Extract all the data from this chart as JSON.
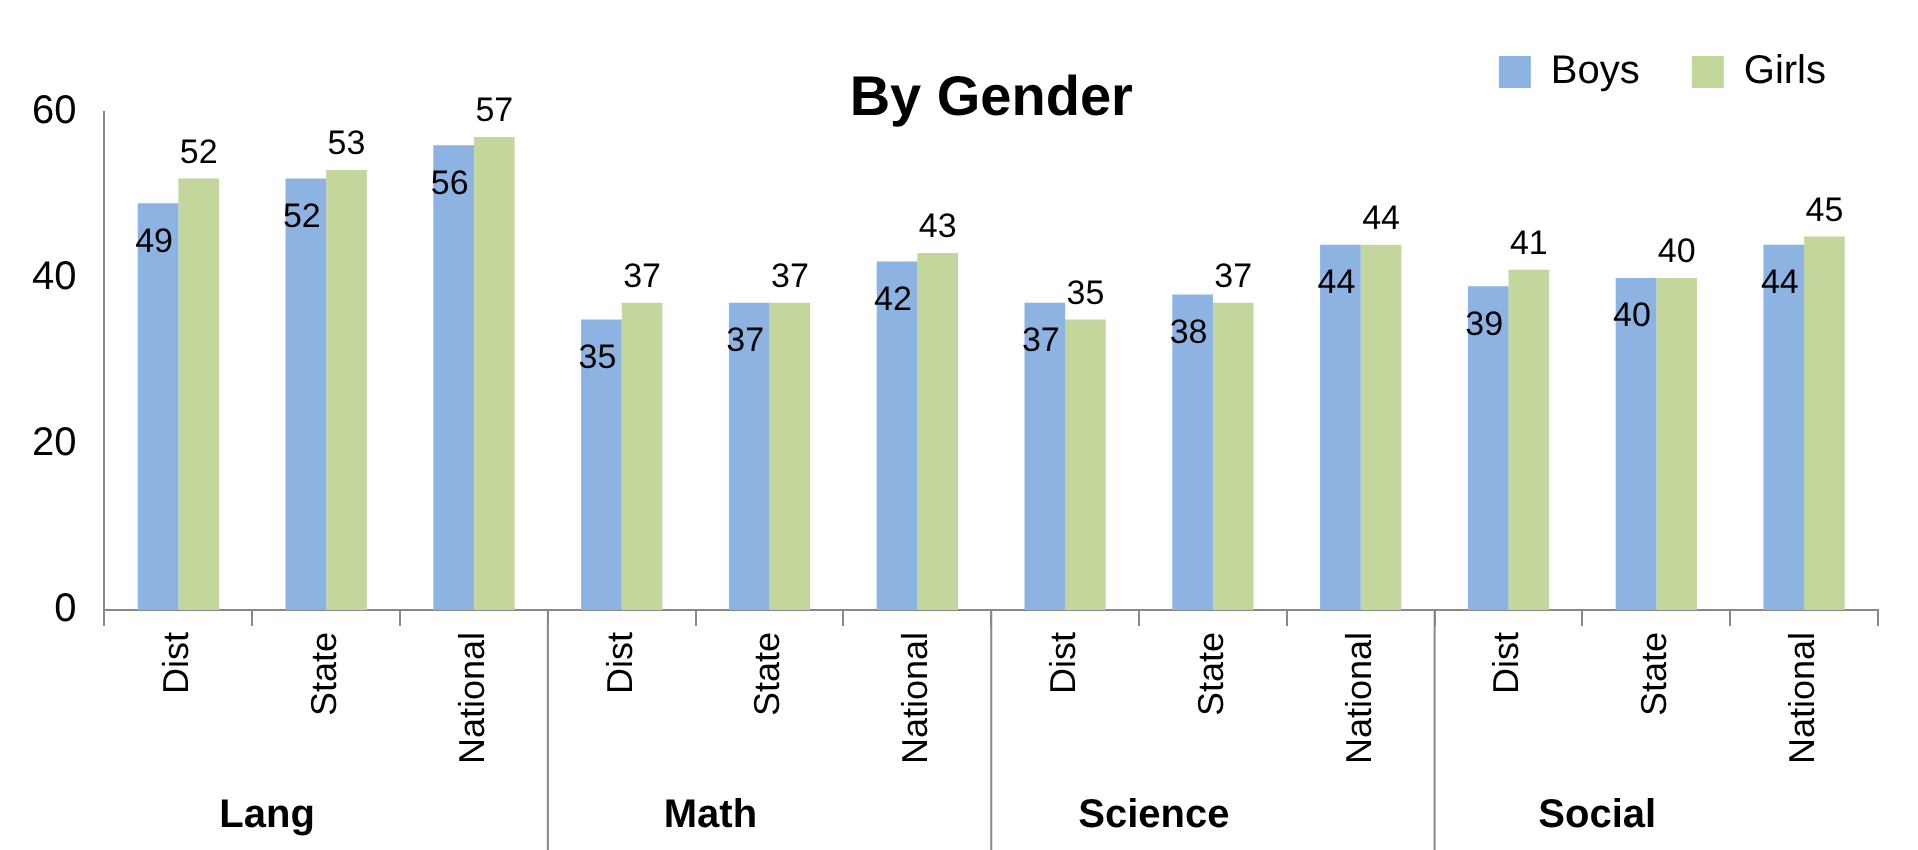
{
  "chart_data": {
    "type": "bar",
    "title": "By Gender",
    "categories": [
      "Dist",
      "State",
      "National",
      "Dist",
      "State",
      "National",
      "Dist",
      "State",
      "National",
      "Dist",
      "State",
      "National"
    ],
    "series": [
      {
        "name": "Boys",
        "color": "#8db3e2",
        "values": [
          49,
          52,
          56,
          35,
          37,
          42,
          37,
          38,
          44,
          39,
          40,
          44
        ]
      },
      {
        "name": "Girls",
        "color": "#c3d69b",
        "values": [
          52,
          53,
          57,
          37,
          37,
          43,
          35,
          37,
          44,
          41,
          40,
          45
        ]
      }
    ],
    "annotations": [
      "Lang",
      "Math",
      "Science",
      "Social"
    ],
    "ylim": [
      0,
      60
    ],
    "yticks": [
      0,
      20,
      40,
      60
    ],
    "grid": false,
    "legend": "top right",
    "data_labels": true
  }
}
